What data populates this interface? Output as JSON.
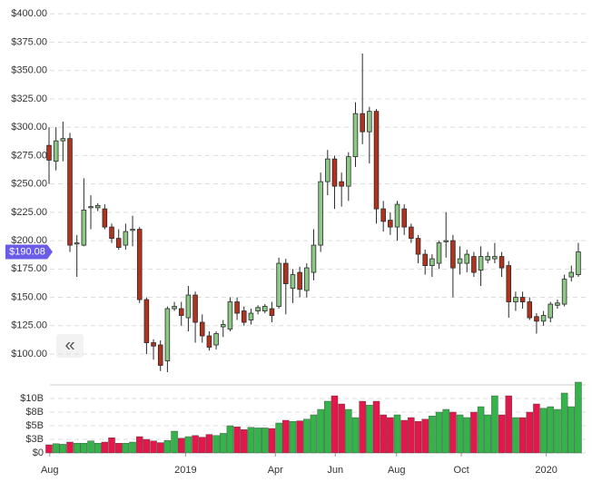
{
  "chart_data": {
    "type": "candlestick",
    "up_color": "#8dc887",
    "down_color": "#b3321d",
    "outline_color": "#2a2a2a",
    "volume_up_color": "#33b34a",
    "volume_down_color": "#e3174a",
    "open": [
      284,
      270,
      288,
      290,
      197,
      196,
      229,
      229,
      228,
      212,
      202,
      196,
      209,
      210,
      148,
      110,
      108,
      94,
      140,
      140,
      132,
      152,
      128,
      116,
      108,
      124,
      122,
      146,
      138,
      130,
      138,
      138,
      140,
      142,
      180,
      158,
      172,
      156,
      172,
      196,
      252,
      272,
      252,
      248,
      274,
      312,
      296,
      314,
      228,
      218,
      212,
      228,
      212,
      202,
      188,
      178,
      180,
      199,
      200,
      180,
      180,
      186,
      174,
      183,
      184,
      186,
      178,
      146,
      150,
      146,
      133,
      129,
      132,
      143,
      144,
      168,
      170
    ],
    "high": [
      300,
      300,
      305,
      295,
      205,
      255,
      240,
      233,
      232,
      215,
      210,
      215,
      222,
      212,
      150,
      113,
      112,
      142,
      146,
      146,
      160,
      155,
      135,
      120,
      120,
      130,
      150,
      150,
      142,
      140,
      143,
      144,
      146,
      185,
      184,
      175,
      177,
      180,
      210,
      260,
      280,
      275,
      260,
      278,
      322,
      365,
      318,
      316,
      235,
      225,
      235,
      232,
      215,
      205,
      192,
      188,
      200,
      225,
      205,
      195,
      192,
      190,
      195,
      190,
      198,
      190,
      182,
      155,
      155,
      150,
      136,
      138,
      146,
      148,
      170,
      178,
      198
    ],
    "low": [
      250,
      262,
      270,
      190,
      168,
      195,
      210,
      226,
      210,
      198,
      192,
      192,
      195,
      145,
      100,
      95,
      85,
      84,
      138,
      125,
      120,
      110,
      110,
      103,
      104,
      115,
      120,
      130,
      125,
      126,
      135,
      136,
      128,
      140,
      135,
      145,
      150,
      150,
      165,
      190,
      240,
      228,
      230,
      235,
      265,
      285,
      268,
      215,
      208,
      205,
      200,
      205,
      198,
      180,
      170,
      168,
      175,
      185,
      150,
      170,
      172,
      168,
      160,
      180,
      180,
      168,
      132,
      138,
      140,
      130,
      118,
      125,
      128,
      140,
      142,
      164,
      168
    ],
    "close": [
      271,
      288,
      290,
      196,
      198,
      227,
      230,
      231,
      212,
      202,
      194,
      208,
      210,
      148,
      110,
      107,
      90,
      140,
      142,
      134,
      152,
      128,
      116,
      106,
      118,
      126,
      146,
      136,
      128,
      136,
      141,
      142,
      134,
      180,
      162,
      170,
      157,
      176,
      196,
      252,
      272,
      248,
      248,
      274,
      312,
      296,
      314,
      228,
      217,
      212,
      232,
      212,
      202,
      188,
      178,
      184,
      198,
      200,
      176,
      184,
      188,
      172,
      186,
      186,
      186,
      176,
      146,
      150,
      146,
      132,
      129,
      134,
      144,
      145,
      166,
      172,
      190.08
    ],
    "volume": [
      1.5,
      1.7,
      1.6,
      2.0,
      1.8,
      1.8,
      2.2,
      1.8,
      2.0,
      2.8,
      1.8,
      1.8,
      2.0,
      3.0,
      2.5,
      2.2,
      1.9,
      2.3,
      4.0,
      2.7,
      3.0,
      3.2,
      2.9,
      3.4,
      3.2,
      3.6,
      5.0,
      4.8,
      4.3,
      4.7,
      4.6,
      4.6,
      4.5,
      5.5,
      6.0,
      5.8,
      5.9,
      6.2,
      7.0,
      8.0,
      9.5,
      10.5,
      9.0,
      8.0,
      6.5,
      9.5,
      8.8,
      9.5,
      7.0,
      6.5,
      7.0,
      6.0,
      6.5,
      5.8,
      6.2,
      6.8,
      7.5,
      8.0,
      7.5,
      7.0,
      6.5,
      7.5,
      8.5,
      7.0,
      10.5,
      7.0,
      10.5,
      6.5,
      6.5,
      7.5,
      9.0,
      8.2,
      8.5,
      8.0,
      11.0,
      8.5,
      13.0
    ],
    "xlim": [
      -0.13,
      77.05
    ],
    "xticks": [
      {
        "value": 0.1,
        "label": "Aug"
      },
      {
        "value": 19.6,
        "label": "2019"
      },
      {
        "value": 32.5,
        "label": "Apr"
      },
      {
        "value": 41.1,
        "label": "Jun"
      },
      {
        "value": 49.9,
        "label": "Aug"
      },
      {
        "value": 59.2,
        "label": "Oct"
      },
      {
        "value": 71.4,
        "label": "2020"
      }
    ],
    "ylim": [
      80,
      405
    ],
    "yticks": [
      {
        "value": 100,
        "label": "$100.00"
      },
      {
        "value": 125,
        "label": "$125.00"
      },
      {
        "value": 150,
        "label": "$150.00"
      },
      {
        "value": 175,
        "label": "$175.00"
      },
      {
        "value": 200,
        "label": "$200.00"
      },
      {
        "value": 225,
        "label": "$225.00"
      },
      {
        "value": 250,
        "label": "$250.00"
      },
      {
        "value": 275,
        "label": "$275.00"
      },
      {
        "value": 300,
        "label": "$300.00"
      },
      {
        "value": 325,
        "label": "$325.00"
      },
      {
        "value": 350,
        "label": "$350.00"
      },
      {
        "value": 375,
        "label": "$375.00"
      },
      {
        "value": 400,
        "label": "$400.00"
      }
    ],
    "volume_ylim": [
      0,
      13.5
    ],
    "volume_yticks": [
      {
        "value": 0,
        "label": "$0"
      },
      {
        "value": 2.5,
        "label": "$3B"
      },
      {
        "value": 5,
        "label": "$5B"
      },
      {
        "value": 7.5,
        "label": "$8B"
      },
      {
        "value": 10,
        "label": "$10B"
      }
    ],
    "grid": true,
    "last_price": {
      "value": 190.08,
      "label": "$190.08"
    },
    "last_price_color": "#6b5ce7",
    "back_button_label": "«"
  }
}
